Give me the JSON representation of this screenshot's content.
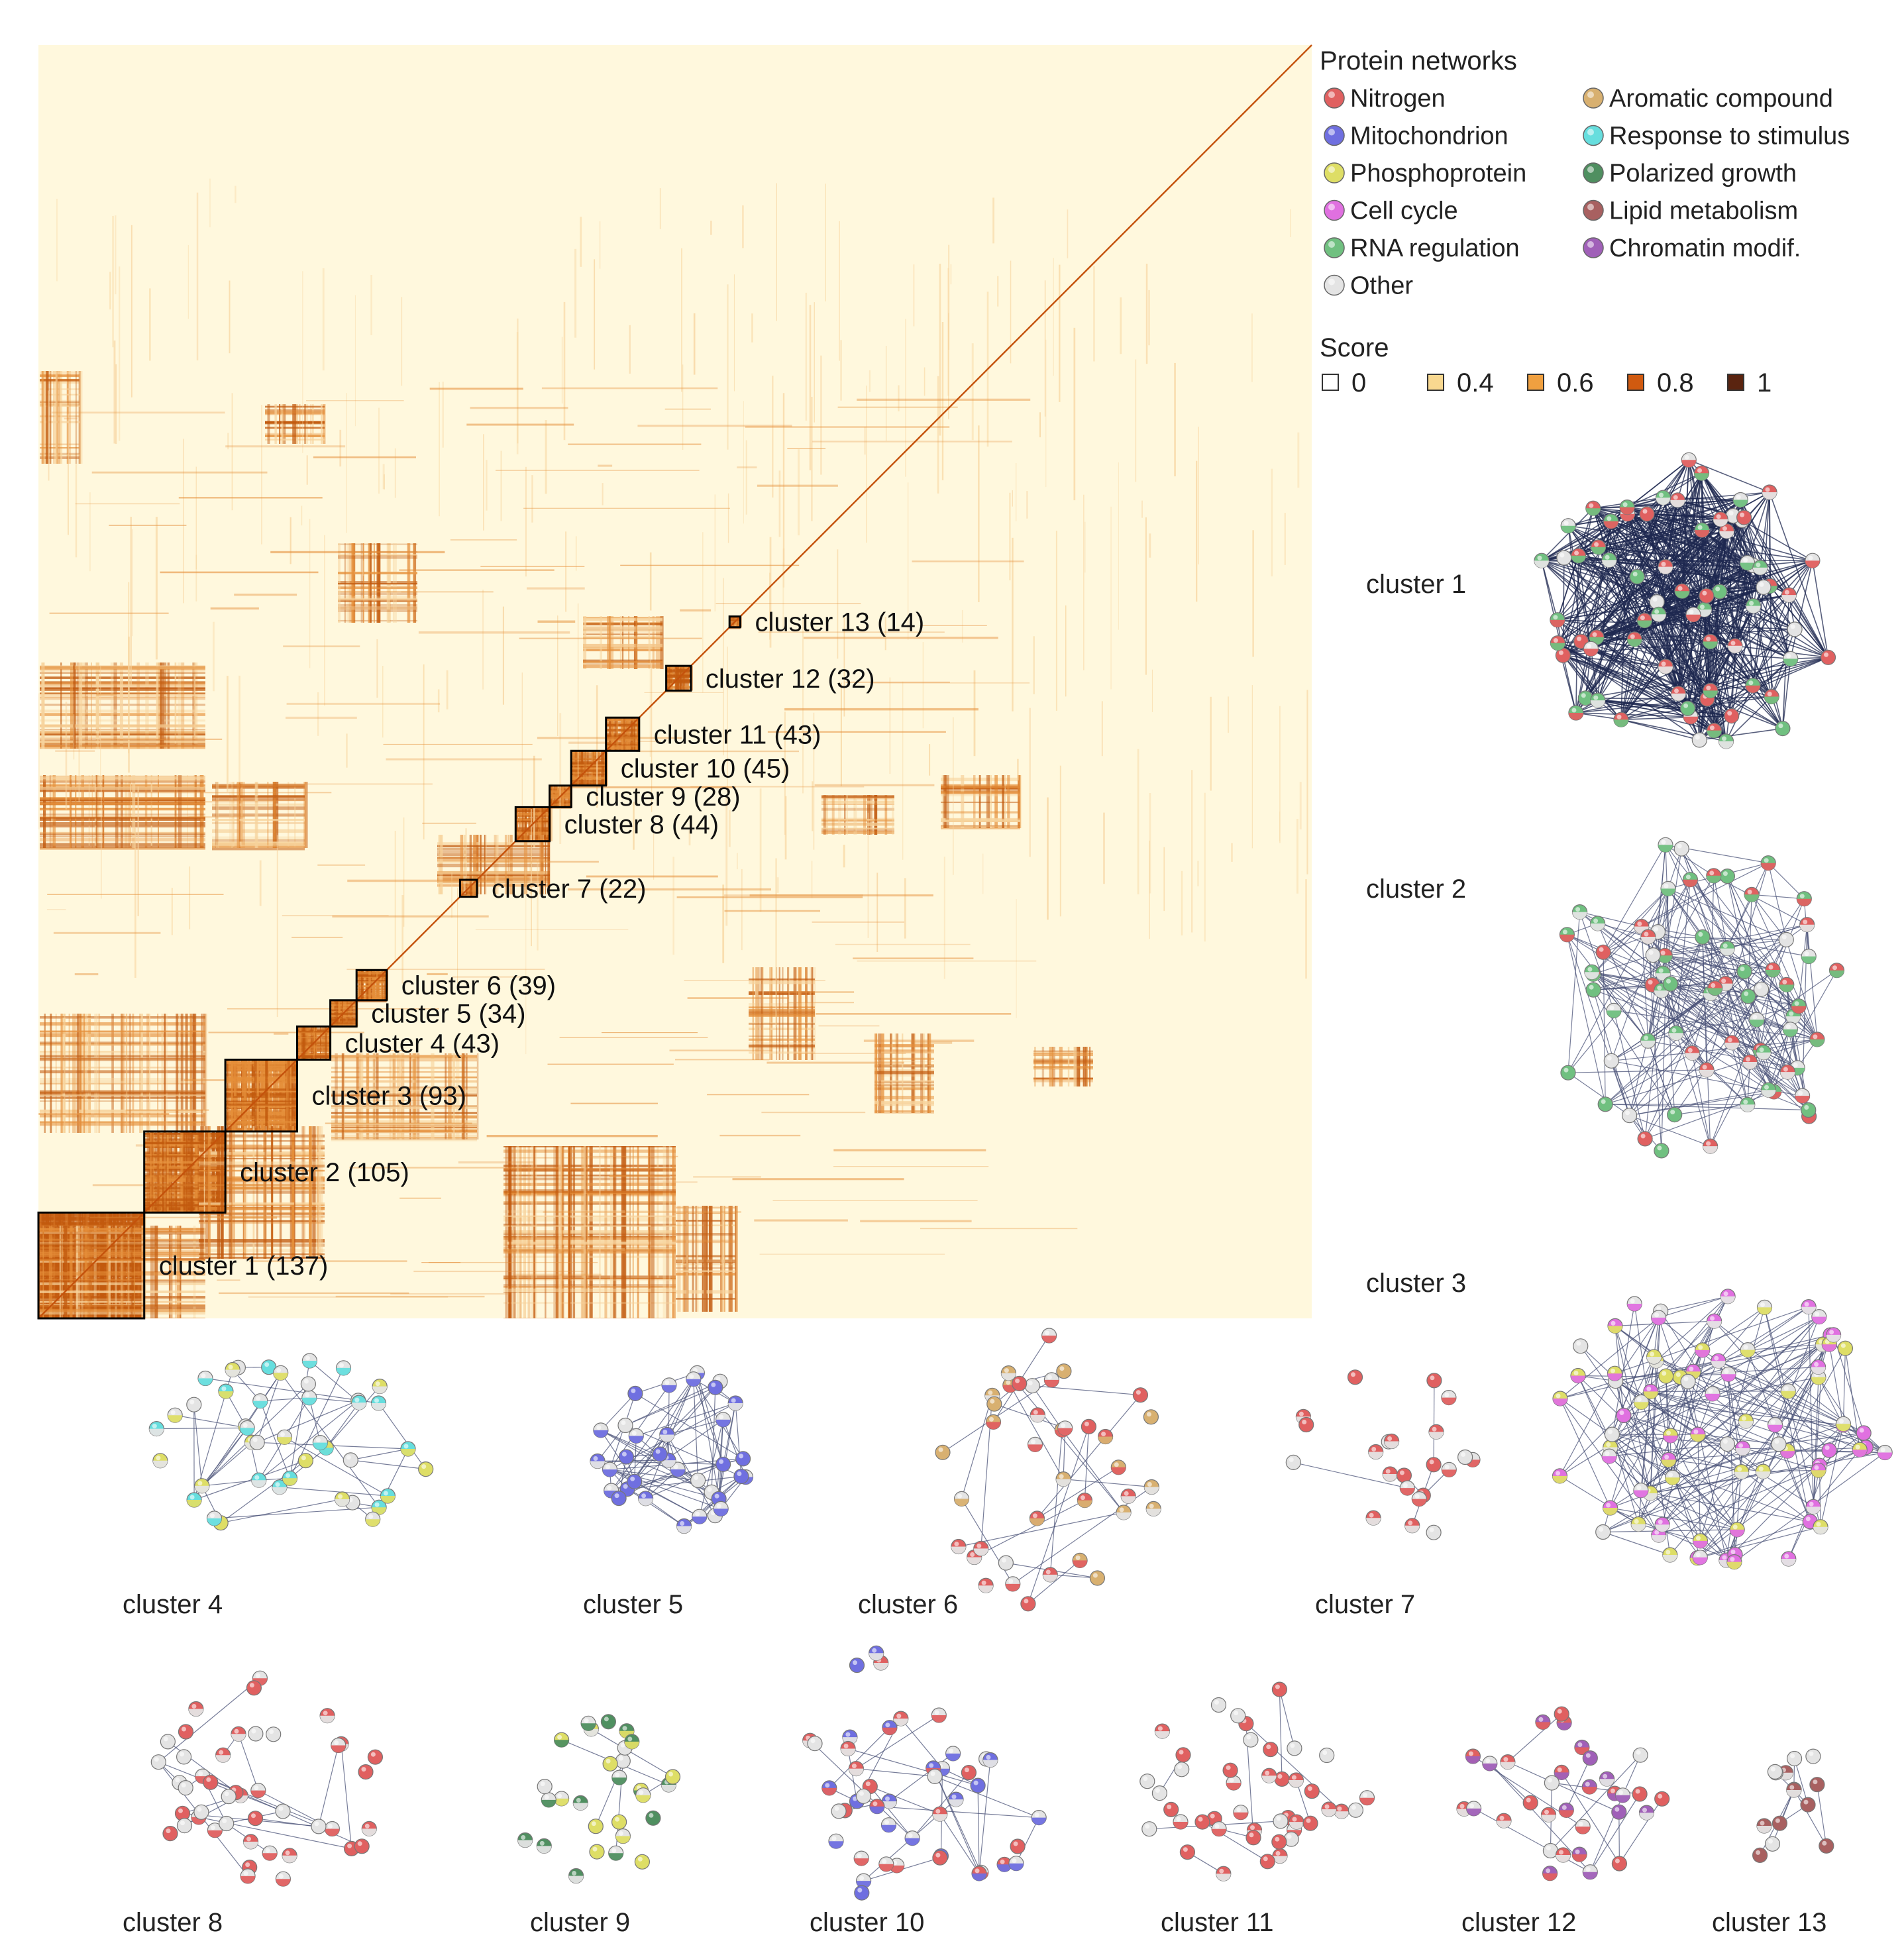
{
  "heatmap": {
    "colors": {
      "bg": "#fff8dd",
      "dark": "#c25a0e",
      "mid": "#e58f3a",
      "light": "#f7d39c",
      "box": "#000000"
    },
    "clusters": [
      {
        "id": 1,
        "label": "cluster 1 (137)",
        "size": 137
      },
      {
        "id": 2,
        "label": "cluster 2 (105)",
        "size": 105
      },
      {
        "id": 3,
        "label": "cluster 3 (93)",
        "size": 93
      },
      {
        "id": 4,
        "label": "cluster 4 (43)",
        "size": 43
      },
      {
        "id": 5,
        "label": "cluster 5 (34)",
        "size": 34
      },
      {
        "id": 6,
        "label": "cluster 6 (39)",
        "size": 39
      },
      {
        "id": 7,
        "label": "cluster 7 (22)",
        "size": 22
      },
      {
        "id": 8,
        "label": "cluster 8 (44)",
        "size": 44
      },
      {
        "id": 9,
        "label": "cluster 9 (28)",
        "size": 28
      },
      {
        "id": 10,
        "label": "cluster 10 (45)",
        "size": 45
      },
      {
        "id": 11,
        "label": "cluster 11 (43)",
        "size": 43
      },
      {
        "id": 12,
        "label": "cluster 12 (32)",
        "size": 32
      },
      {
        "id": 13,
        "label": "cluster 13 (14)",
        "size": 14
      }
    ]
  },
  "legend": {
    "title": "Protein networks",
    "items": [
      {
        "label": "Nitrogen",
        "color": "#e06060"
      },
      {
        "label": "Mitochondrion",
        "color": "#6f6fe0"
      },
      {
        "label": "Phosphoprotein",
        "color": "#dede66"
      },
      {
        "label": "Cell cycle",
        "color": "#e070e0"
      },
      {
        "label": "RNA regulation",
        "color": "#70c080"
      },
      {
        "label": "Other",
        "color": "#e4e4e4"
      },
      {
        "label": "Aromatic compound",
        "color": "#d8b070"
      },
      {
        "label": "Response to stimulus",
        "color": "#66dede"
      },
      {
        "label": "Polarized growth",
        "color": "#4f8f60"
      },
      {
        "label": "Lipid metabolism",
        "color": "#a86060"
      },
      {
        "label": "Chromatin modif.",
        "color": "#a060b8"
      }
    ],
    "score_title": "Score",
    "score_items": [
      {
        "label": "0",
        "color": "#ffffff"
      },
      {
        "label": "0.4",
        "color": "#f8d890"
      },
      {
        "label": "0.6",
        "color": "#f0a040"
      },
      {
        "label": "0.8",
        "color": "#d05a10"
      },
      {
        "label": "1",
        "color": "#5a2410"
      }
    ]
  },
  "networks": [
    {
      "label": "cluster 1",
      "nodes": 70,
      "density": 0.6,
      "colors": [
        "Nitrogen",
        "RNA regulation",
        "Other"
      ]
    },
    {
      "label": "cluster 2",
      "nodes": 70,
      "density": 0.25,
      "colors": [
        "Nitrogen",
        "RNA regulation",
        "Other"
      ]
    },
    {
      "label": "cluster 3",
      "nodes": 80,
      "density": 0.15,
      "colors": [
        "Cell cycle",
        "Phosphoprotein",
        "Other"
      ]
    },
    {
      "label": "cluster 4",
      "nodes": 42,
      "density": 0.12,
      "colors": [
        "Phosphoprotein",
        "Response to stimulus",
        "Other"
      ]
    },
    {
      "label": "cluster 5",
      "nodes": 34,
      "density": 0.35,
      "colors": [
        "Mitochondrion",
        "Other"
      ]
    },
    {
      "label": "cluster 6",
      "nodes": 38,
      "density": 0.08,
      "colors": [
        "Nitrogen",
        "Aromatic compound",
        "Other"
      ]
    },
    {
      "label": "cluster 7",
      "nodes": 22,
      "density": 0.04,
      "colors": [
        "Nitrogen",
        "Other"
      ]
    },
    {
      "label": "cluster 8",
      "nodes": 44,
      "density": 0.08,
      "colors": [
        "Nitrogen",
        "Other"
      ]
    },
    {
      "label": "cluster 9",
      "nodes": 28,
      "density": 0.04,
      "colors": [
        "Phosphoprotein",
        "Polarized growth",
        "Other"
      ]
    },
    {
      "label": "cluster 10",
      "nodes": 45,
      "density": 0.06,
      "colors": [
        "Mitochondrion",
        "Nitrogen",
        "Other"
      ]
    },
    {
      "label": "cluster 11",
      "nodes": 43,
      "density": 0.04,
      "colors": [
        "Nitrogen",
        "Other"
      ]
    },
    {
      "label": "cluster 12",
      "nodes": 32,
      "density": 0.08,
      "colors": [
        "Nitrogen",
        "Chromatin modif.",
        "Other"
      ]
    },
    {
      "label": "cluster 13",
      "nodes": 14,
      "density": 0.12,
      "colors": [
        "Lipid metabolism",
        "Other"
      ]
    }
  ]
}
